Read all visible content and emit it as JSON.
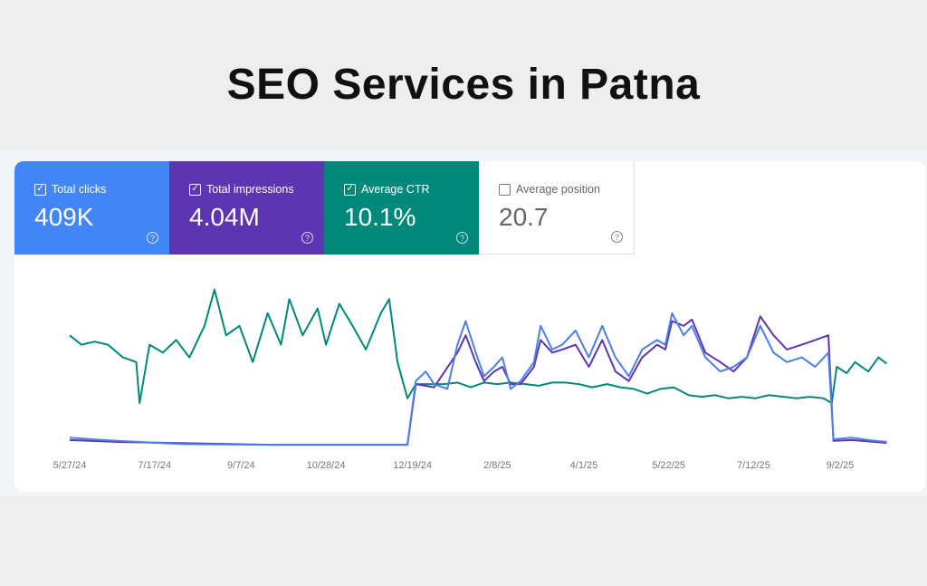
{
  "title": "SEO Services in Patna",
  "metrics": [
    {
      "label": "Total clicks",
      "value": "409K",
      "checked": true,
      "color": "#4285f4"
    },
    {
      "label": "Total impressions",
      "value": "4.04M",
      "checked": true,
      "color": "#5e35b1"
    },
    {
      "label": "Average CTR",
      "value": "10.1%",
      "checked": true,
      "color": "#00897b"
    },
    {
      "label": "Average position",
      "value": "20.7",
      "checked": false,
      "color": "#ffffff"
    }
  ],
  "chart_data": {
    "type": "line",
    "xlabel": "",
    "ylabel": "",
    "x_unit": "days since 5/27/24",
    "xlim": [
      0,
      491
    ],
    "ylim": [
      0,
      100
    ],
    "y_note": "relative scale (no y-axis shown)",
    "ticks": [
      {
        "day": 0,
        "label": "5/27/24"
      },
      {
        "day": 51,
        "label": "7/17/24"
      },
      {
        "day": 103,
        "label": "9/7/24"
      },
      {
        "day": 154,
        "label": "10/28/24"
      },
      {
        "day": 206,
        "label": "12/19/24"
      },
      {
        "day": 257,
        "label": "2/8/25"
      },
      {
        "day": 309,
        "label": "4/1/25"
      },
      {
        "day": 360,
        "label": "5/22/25"
      },
      {
        "day": 411,
        "label": "7/12/25"
      },
      {
        "day": 463,
        "label": "9/2/25"
      }
    ],
    "series": [
      {
        "name": "Average CTR",
        "color": "#00897b",
        "points": [
          [
            0,
            70
          ],
          [
            7,
            64
          ],
          [
            15,
            66
          ],
          [
            23,
            64
          ],
          [
            32,
            56
          ],
          [
            40,
            53
          ],
          [
            42,
            27
          ],
          [
            48,
            64
          ],
          [
            56,
            59
          ],
          [
            64,
            67
          ],
          [
            72,
            56
          ],
          [
            81,
            76
          ],
          [
            87,
            99
          ],
          [
            94,
            70
          ],
          [
            102,
            76
          ],
          [
            110,
            53
          ],
          [
            119,
            84
          ],
          [
            127,
            64
          ],
          [
            132,
            93
          ],
          [
            140,
            70
          ],
          [
            149,
            87
          ],
          [
            154,
            64
          ],
          [
            162,
            90
          ],
          [
            170,
            76
          ],
          [
            178,
            61
          ],
          [
            187,
            84
          ],
          [
            192,
            93
          ],
          [
            197,
            53
          ],
          [
            203,
            30
          ],
          [
            208,
            39
          ],
          [
            217,
            39
          ],
          [
            225,
            39
          ],
          [
            233,
            40
          ],
          [
            241,
            37
          ],
          [
            249,
            40
          ],
          [
            257,
            39
          ],
          [
            265,
            40
          ],
          [
            274,
            39
          ],
          [
            282,
            38
          ],
          [
            290,
            40
          ],
          [
            298,
            40
          ],
          [
            306,
            39
          ],
          [
            314,
            37
          ],
          [
            323,
            39
          ],
          [
            331,
            37
          ],
          [
            339,
            36
          ],
          [
            347,
            33
          ],
          [
            355,
            36
          ],
          [
            363,
            37
          ],
          [
            372,
            32
          ],
          [
            380,
            31
          ],
          [
            388,
            32
          ],
          [
            396,
            30
          ],
          [
            404,
            31
          ],
          [
            412,
            30
          ],
          [
            420,
            32
          ],
          [
            429,
            31
          ],
          [
            437,
            30
          ],
          [
            445,
            31
          ],
          [
            453,
            30
          ],
          [
            458,
            27
          ],
          [
            461,
            50
          ],
          [
            467,
            46
          ],
          [
            472,
            53
          ],
          [
            480,
            47
          ],
          [
            486,
            56
          ],
          [
            491,
            52
          ]
        ]
      },
      {
        "name": "Total impressions",
        "color": "#5e35b1",
        "points": [
          [
            0,
            3.5
          ],
          [
            29,
            2.3
          ],
          [
            121,
            0.5
          ],
          [
            203,
            0.5
          ],
          [
            208,
            39
          ],
          [
            219,
            37
          ],
          [
            233,
            59
          ],
          [
            238,
            70
          ],
          [
            244,
            53
          ],
          [
            249,
            41
          ],
          [
            255,
            47
          ],
          [
            260,
            50
          ],
          [
            265,
            39
          ],
          [
            271,
            39
          ],
          [
            279,
            50
          ],
          [
            283,
            67
          ],
          [
            290,
            59
          ],
          [
            296,
            61
          ],
          [
            304,
            64
          ],
          [
            312,
            50
          ],
          [
            320,
            67
          ],
          [
            328,
            47
          ],
          [
            336,
            41
          ],
          [
            344,
            56
          ],
          [
            353,
            64
          ],
          [
            358,
            61
          ],
          [
            362,
            79
          ],
          [
            369,
            76
          ],
          [
            374,
            80
          ],
          [
            382,
            59
          ],
          [
            391,
            53
          ],
          [
            399,
            47
          ],
          [
            407,
            56
          ],
          [
            415,
            82
          ],
          [
            423,
            70
          ],
          [
            431,
            61
          ],
          [
            440,
            64
          ],
          [
            448,
            67
          ],
          [
            456,
            70
          ],
          [
            459,
            3
          ],
          [
            470,
            3.5
          ],
          [
            491,
            1.7
          ]
        ]
      },
      {
        "name": "Total clicks",
        "color": "#4a7fe8",
        "points": [
          [
            0,
            5
          ],
          [
            13,
            4
          ],
          [
            29,
            3
          ],
          [
            67,
            1
          ],
          [
            121,
            0.5
          ],
          [
            176,
            0.5
          ],
          [
            203,
            0.5
          ],
          [
            208,
            41
          ],
          [
            214,
            47
          ],
          [
            219,
            39
          ],
          [
            227,
            36
          ],
          [
            233,
            64
          ],
          [
            238,
            79
          ],
          [
            244,
            59
          ],
          [
            249,
            44
          ],
          [
            255,
            50
          ],
          [
            260,
            56
          ],
          [
            265,
            36
          ],
          [
            271,
            41
          ],
          [
            279,
            53
          ],
          [
            283,
            76
          ],
          [
            290,
            61
          ],
          [
            296,
            64
          ],
          [
            304,
            73
          ],
          [
            312,
            56
          ],
          [
            320,
            76
          ],
          [
            328,
            56
          ],
          [
            336,
            44
          ],
          [
            344,
            61
          ],
          [
            353,
            67
          ],
          [
            358,
            64
          ],
          [
            362,
            84
          ],
          [
            369,
            70
          ],
          [
            374,
            76
          ],
          [
            382,
            56
          ],
          [
            391,
            47
          ],
          [
            399,
            50
          ],
          [
            407,
            56
          ],
          [
            415,
            76
          ],
          [
            423,
            59
          ],
          [
            431,
            53
          ],
          [
            440,
            56
          ],
          [
            448,
            50
          ],
          [
            456,
            59
          ],
          [
            459,
            4
          ],
          [
            470,
            5
          ],
          [
            480,
            3.5
          ],
          [
            491,
            2.3
          ]
        ]
      }
    ]
  }
}
